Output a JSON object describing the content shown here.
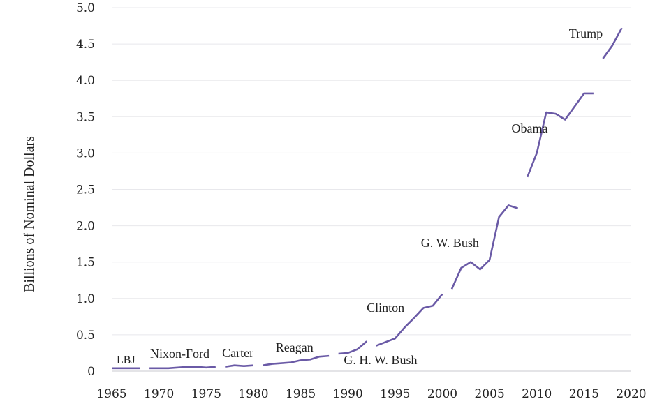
{
  "chart_data": {
    "type": "line",
    "title": "",
    "xlabel": "",
    "ylabel": "Billions of Nominal Dollars",
    "xlim": [
      1965,
      2020
    ],
    "ylim": [
      0,
      5.0
    ],
    "x_ticks": [
      "1965",
      "1970",
      "1975",
      "1980",
      "1985",
      "1990",
      "1995",
      "2000",
      "2005",
      "2010",
      "2015",
      "2020"
    ],
    "y_ticks": [
      "0",
      "0.5",
      "1.0",
      "1.5",
      "2.0",
      "2.5",
      "3.0",
      "3.5",
      "4.0",
      "4.5",
      "5.0"
    ],
    "grid": "horizontal",
    "line_color": "#6a5aa6",
    "segments": [
      {
        "label": "LBJ",
        "points": [
          [
            1965,
            0.04
          ],
          [
            1966,
            0.04
          ],
          [
            1967,
            0.04
          ],
          [
            1968,
            0.04
          ]
        ]
      },
      {
        "label": "Nixon-Ford",
        "points": [
          [
            1969,
            0.04
          ],
          [
            1970,
            0.04
          ],
          [
            1971,
            0.04
          ],
          [
            1972,
            0.05
          ],
          [
            1973,
            0.06
          ],
          [
            1974,
            0.06
          ],
          [
            1975,
            0.05
          ],
          [
            1976,
            0.06
          ]
        ]
      },
      {
        "label": "Carter",
        "points": [
          [
            1977,
            0.06
          ],
          [
            1978,
            0.08
          ],
          [
            1979,
            0.07
          ],
          [
            1980,
            0.08
          ]
        ]
      },
      {
        "label": "Reagan",
        "points": [
          [
            1981,
            0.08
          ],
          [
            1982,
            0.1
          ],
          [
            1983,
            0.11
          ],
          [
            1984,
            0.12
          ],
          [
            1985,
            0.15
          ],
          [
            1986,
            0.16
          ],
          [
            1987,
            0.2
          ],
          [
            1988,
            0.21
          ]
        ]
      },
      {
        "label": "G. H. W. Bush",
        "points": [
          [
            1989,
            0.24
          ],
          [
            1990,
            0.25
          ],
          [
            1991,
            0.3
          ],
          [
            1992,
            0.41
          ]
        ]
      },
      {
        "label": "Clinton",
        "points": [
          [
            1993,
            0.35
          ],
          [
            1994,
            0.4
          ],
          [
            1995,
            0.45
          ],
          [
            1996,
            0.6
          ],
          [
            1997,
            0.73
          ],
          [
            1998,
            0.87
          ],
          [
            1999,
            0.9
          ],
          [
            2000,
            1.06
          ]
        ]
      },
      {
        "label": "G. W. Bush",
        "points": [
          [
            2001,
            1.13
          ],
          [
            2002,
            1.42
          ],
          [
            2003,
            1.5
          ],
          [
            2004,
            1.4
          ],
          [
            2005,
            1.53
          ],
          [
            2006,
            2.12
          ],
          [
            2007,
            2.28
          ],
          [
            2008,
            2.24
          ]
        ]
      },
      {
        "label": "Obama",
        "points": [
          [
            2009,
            2.67
          ],
          [
            2010,
            3.0
          ],
          [
            2011,
            3.56
          ],
          [
            2012,
            3.54
          ],
          [
            2013,
            3.46
          ],
          [
            2014,
            3.64
          ],
          [
            2015,
            3.82
          ],
          [
            2016,
            3.82
          ]
        ]
      },
      {
        "label": "Trump",
        "points": [
          [
            2017,
            4.3
          ],
          [
            2018,
            4.48
          ],
          [
            2019,
            4.72
          ]
        ]
      }
    ]
  }
}
